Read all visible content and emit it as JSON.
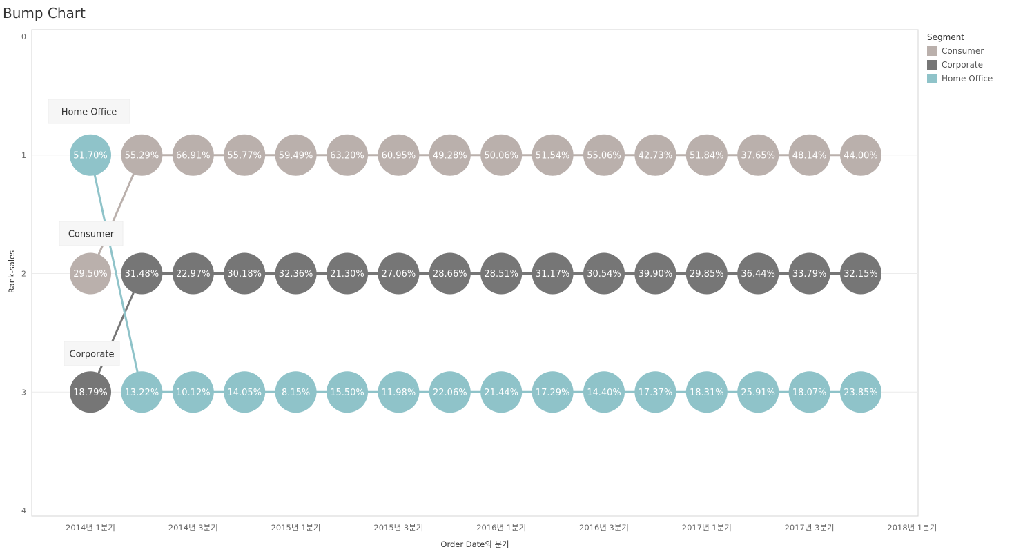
{
  "title": "Bump Chart",
  "legend": {
    "title": "Segment",
    "items": [
      {
        "label": "Consumer",
        "color": "#bab0ac"
      },
      {
        "label": "Corporate",
        "color": "#767676"
      },
      {
        "label": "Home Office",
        "color": "#8fc3c9"
      }
    ]
  },
  "chart_data": {
    "type": "line",
    "title": "Bump Chart",
    "xlabel": "Order Date의 분기",
    "ylabel": "Rank-sales",
    "ylim": [
      0,
      4
    ],
    "y_ticks": [
      "0",
      "1",
      "2",
      "3",
      "4"
    ],
    "x_tick_labels": [
      "2014년 1분기",
      "2014년 3분기",
      "2015년 1분기",
      "2015년 3분기",
      "2016년 1분기",
      "2016년 3분기",
      "2017년 1분기",
      "2017년 3분기",
      "2018년 1분기"
    ],
    "x": [
      "2014 Q1",
      "2014 Q2",
      "2014 Q3",
      "2014 Q4",
      "2015 Q1",
      "2015 Q2",
      "2015 Q3",
      "2015 Q4",
      "2016 Q1",
      "2016 Q2",
      "2016 Q3",
      "2016 Q4",
      "2017 Q1",
      "2017 Q2",
      "2017 Q3",
      "2017 Q4"
    ],
    "series": [
      {
        "name": "Consumer",
        "color": "#bab0ac",
        "rank": [
          2,
          1,
          1,
          1,
          1,
          1,
          1,
          1,
          1,
          1,
          1,
          1,
          1,
          1,
          1,
          1
        ],
        "labels": [
          "29.50%",
          "55.29%",
          "66.91%",
          "55.77%",
          "59.49%",
          "63.20%",
          "60.95%",
          "49.28%",
          "50.06%",
          "51.54%",
          "55.06%",
          "42.73%",
          "51.84%",
          "37.65%",
          "48.14%",
          "44.00%"
        ]
      },
      {
        "name": "Corporate",
        "color": "#767676",
        "rank": [
          3,
          2,
          2,
          2,
          2,
          2,
          2,
          2,
          2,
          2,
          2,
          2,
          2,
          2,
          2,
          2
        ],
        "labels": [
          "18.79%",
          "31.48%",
          "22.97%",
          "30.18%",
          "32.36%",
          "21.30%",
          "27.06%",
          "28.66%",
          "28.51%",
          "31.17%",
          "30.54%",
          "39.90%",
          "29.85%",
          "36.44%",
          "33.79%",
          "32.15%"
        ]
      },
      {
        "name": "Home Office",
        "color": "#8fc3c9",
        "rank": [
          1,
          3,
          3,
          3,
          3,
          3,
          3,
          3,
          3,
          3,
          3,
          3,
          3,
          3,
          3,
          3
        ],
        "labels": [
          "51.70%",
          "13.22%",
          "10.12%",
          "14.05%",
          "8.15%",
          "15.50%",
          "11.98%",
          "22.06%",
          "21.44%",
          "17.29%",
          "14.40%",
          "17.37%",
          "18.31%",
          "25.91%",
          "18.07%",
          "23.85%"
        ]
      }
    ],
    "annotations": [
      "Home Office",
      "Consumer",
      "Corporate"
    ],
    "grid": true,
    "legend_position": "top-right"
  }
}
